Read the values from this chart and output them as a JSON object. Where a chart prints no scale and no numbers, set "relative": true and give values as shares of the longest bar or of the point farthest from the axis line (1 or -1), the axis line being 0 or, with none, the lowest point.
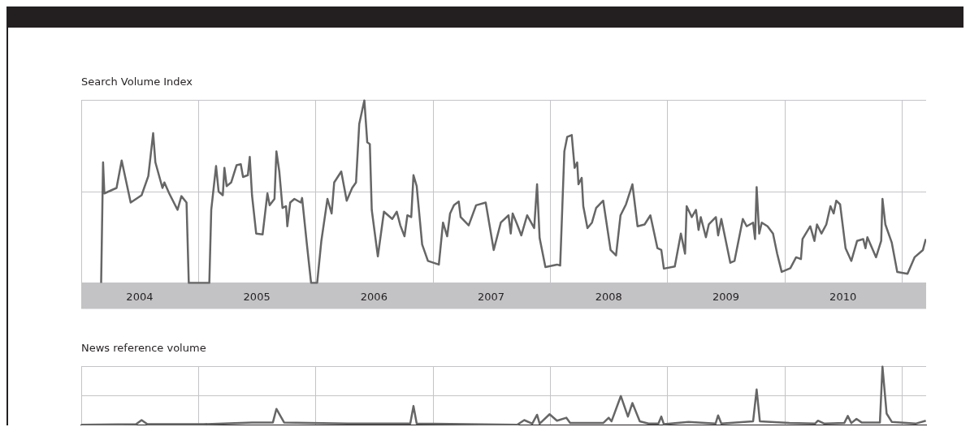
{
  "chart_data": [
    {
      "type": "line",
      "title": "Search Volume Index",
      "relative": true,
      "grid": true,
      "color": "#666666",
      "xlim": [
        "2004-01-01",
        "2011-03-17"
      ],
      "xticks": [
        {
          "value": "2004-01-01",
          "label": null
        },
        {
          "value": "2004-07-01",
          "label": "2004"
        },
        {
          "value": "2005-01-01",
          "label": null
        },
        {
          "value": "2005-07-01",
          "label": "2005"
        },
        {
          "value": "2006-01-01",
          "label": null
        },
        {
          "value": "2006-07-01",
          "label": "2006"
        },
        {
          "value": "2007-01-01",
          "label": null
        },
        {
          "value": "2007-07-01",
          "label": "2007"
        },
        {
          "value": "2008-01-01",
          "label": null
        },
        {
          "value": "2008-07-01",
          "label": "2008"
        },
        {
          "value": "2009-01-01",
          "label": null
        },
        {
          "value": "2009-07-01",
          "label": "2009"
        },
        {
          "value": "2010-01-01",
          "label": null
        },
        {
          "value": "2010-07-01",
          "label": "2010"
        },
        {
          "value": "2011-01-01",
          "label": null
        }
      ],
      "x": [
        "2004-03-03",
        "2004-03-09",
        "2004-03-13",
        "2004-04-20",
        "2004-05-06",
        "2004-06-03",
        "2004-07-07",
        "2004-07-28",
        "2004-08-12",
        "2004-08-19",
        "2004-09-10",
        "2004-09-16",
        "2004-10-01",
        "2004-10-27",
        "2004-11-08",
        "2004-11-24",
        "2004-12-01",
        "2005-02-03",
        "2005-02-09",
        "2005-02-24",
        "2005-03-04",
        "2005-03-17",
        "2005-03-22",
        "2005-03-29",
        "2005-04-12",
        "2005-04-29",
        "2005-05-12",
        "2005-05-19",
        "2005-06-03",
        "2005-06-09",
        "2005-06-16",
        "2005-06-29",
        "2005-07-19",
        "2005-08-03",
        "2005-08-10",
        "2005-08-25",
        "2005-08-31",
        "2005-09-09",
        "2005-09-19",
        "2005-09-30",
        "2005-10-04",
        "2005-10-13",
        "2005-10-26",
        "2005-11-15",
        "2005-11-19",
        "2005-12-04",
        "2005-12-17",
        "2006-01-05",
        "2006-01-18",
        "2006-02-06",
        "2006-02-19",
        "2006-02-27",
        "2006-03-21",
        "2006-04-07",
        "2006-04-24",
        "2006-05-06",
        "2006-05-16",
        "2006-06-01",
        "2006-06-10",
        "2006-06-18",
        "2006-06-24",
        "2006-07-13",
        "2006-08-01",
        "2006-08-27",
        "2006-09-10",
        "2006-09-21",
        "2006-10-04",
        "2006-10-13",
        "2006-10-25",
        "2006-11-01",
        "2006-11-11",
        "2006-11-28",
        "2006-12-16",
        "2007-01-02",
        "2007-01-19",
        "2007-02-01",
        "2007-02-14",
        "2007-02-23",
        "2007-03-07",
        "2007-03-22",
        "2007-03-28",
        "2007-04-22",
        "2007-05-15",
        "2007-06-14",
        "2007-07-09",
        "2007-07-31",
        "2007-08-24",
        "2007-08-31",
        "2007-09-06",
        "2007-09-20",
        "2007-10-03",
        "2007-10-21",
        "2007-11-12",
        "2007-11-21",
        "2007-11-29",
        "2007-12-17",
        "2008-01-22",
        "2008-02-01",
        "2008-02-14",
        "2008-02-23",
        "2008-03-08",
        "2008-03-17",
        "2008-03-25",
        "2008-03-29",
        "2008-04-08",
        "2008-04-13",
        "2008-04-26",
        "2008-05-10",
        "2008-05-23",
        "2008-06-14",
        "2008-07-07",
        "2008-07-24",
        "2008-08-07",
        "2008-08-24",
        "2008-09-13",
        "2008-09-29",
        "2008-10-21",
        "2008-11-08",
        "2008-11-30",
        "2008-12-12",
        "2008-12-20",
        "2009-01-23",
        "2009-02-11",
        "2009-02-24",
        "2009-03-01",
        "2009-03-17",
        "2009-03-30",
        "2009-04-07",
        "2009-04-14",
        "2009-04-30",
        "2009-05-09",
        "2009-05-31",
        "2009-06-07",
        "2009-06-17",
        "2009-07-15",
        "2009-07-28",
        "2009-08-23",
        "2009-09-04",
        "2009-09-24",
        "2009-09-30",
        "2009-10-05",
        "2009-10-13",
        "2009-10-21",
        "2009-11-08",
        "2009-11-25",
        "2009-12-08",
        "2009-12-22",
        "2010-01-18",
        "2010-02-05",
        "2010-02-20",
        "2010-02-25",
        "2010-03-21",
        "2010-04-03",
        "2010-04-11",
        "2010-04-25",
        "2010-05-10",
        "2010-05-23",
        "2010-06-02",
        "2010-06-10",
        "2010-06-22",
        "2010-07-09",
        "2010-07-27",
        "2010-08-14",
        "2010-09-02",
        "2010-09-09",
        "2010-09-15",
        "2010-10-12",
        "2010-10-28",
        "2010-11-01",
        "2010-11-10",
        "2010-11-30",
        "2010-12-17",
        "2011-01-18",
        "2011-02-09",
        "2011-03-07",
        "2011-03-16"
      ],
      "values": [
        0,
        0.66,
        0.49,
        0.52,
        0.67,
        0.44,
        0.48,
        0.585,
        0.82,
        0.66,
        0.52,
        0.55,
        0.49,
        0.4,
        0.475,
        0.44,
        0,
        0,
        0.4,
        0.64,
        0.5,
        0.48,
        0.63,
        0.53,
        0.55,
        0.645,
        0.65,
        0.58,
        0.59,
        0.69,
        0.48,
        0.27,
        0.265,
        0.49,
        0.425,
        0.46,
        0.72,
        0.61,
        0.41,
        0.42,
        0.31,
        0.44,
        0.46,
        0.44,
        0.465,
        0.21,
        0,
        0,
        0.23,
        0.46,
        0.38,
        0.55,
        0.61,
        0.45,
        0.52,
        0.55,
        0.87,
        1,
        0.77,
        0.76,
        0.4,
        0.145,
        0.39,
        0.35,
        0.39,
        0.315,
        0.255,
        0.37,
        0.36,
        0.59,
        0.53,
        0.21,
        0.12,
        0.11,
        0.1,
        0.33,
        0.255,
        0.38,
        0.425,
        0.445,
        0.36,
        0.315,
        0.425,
        0.44,
        0.18,
        0.33,
        0.37,
        0.27,
        0.38,
        0.32,
        0.26,
        0.37,
        0.3,
        0.54,
        0.245,
        0.086,
        0.1,
        0.095,
        0.72,
        0.8,
        0.81,
        0.63,
        0.66,
        0.54,
        0.575,
        0.42,
        0.3,
        0.33,
        0.41,
        0.45,
        0.18,
        0.15,
        0.37,
        0.43,
        0.54,
        0.31,
        0.32,
        0.37,
        0.19,
        0.18,
        0.078,
        0.09,
        0.27,
        0.16,
        0.42,
        0.36,
        0.4,
        0.29,
        0.36,
        0.25,
        0.32,
        0.36,
        0.26,
        0.35,
        0.11,
        0.12,
        0.35,
        0.31,
        0.33,
        0.24,
        0.525,
        0.27,
        0.33,
        0.31,
        0.27,
        0.16,
        0.06,
        0.08,
        0.14,
        0.13,
        0.24,
        0.31,
        0.23,
        0.32,
        0.27,
        0.32,
        0.42,
        0.38,
        0.45,
        0.43,
        0.19,
        0.12,
        0.23,
        0.24,
        0.19,
        0.25,
        0.14,
        0.23,
        0.46,
        0.32,
        0.22,
        0.06,
        0.05,
        0.14,
        0.18,
        0.24
      ]
    },
    {
      "type": "line",
      "title": "News reference volume",
      "relative": true,
      "grid": true,
      "tick_labels": false,
      "color": "#666666",
      "xlim": [
        "2004-01-01",
        "2011-03-17"
      ],
      "xticks": [
        {
          "value": "2004-01-01",
          "label": null
        },
        {
          "value": "2005-01-01",
          "label": null
        },
        {
          "value": "2006-01-01",
          "label": null
        },
        {
          "value": "2007-01-01",
          "label": null
        },
        {
          "value": "2008-01-01",
          "label": null
        },
        {
          "value": "2009-01-01",
          "label": null
        },
        {
          "value": "2010-01-01",
          "label": null
        },
        {
          "value": "2011-01-01",
          "label": null
        }
      ],
      "x": [
        "2004-01-01",
        "2004-06-20",
        "2004-07-07",
        "2004-07-25",
        "2005-01-15",
        "2005-06-16",
        "2005-08-20",
        "2005-08-31",
        "2005-09-24",
        "2006-04-10",
        "2006-10-22",
        "2006-11-01",
        "2006-11-11",
        "2007-09-20",
        "2007-10-12",
        "2007-11-06",
        "2007-11-21",
        "2007-11-29",
        "2007-12-30",
        "2008-01-22",
        "2008-02-20",
        "2008-03-03",
        "2008-06-14",
        "2008-07-01",
        "2008-07-10",
        "2008-08-08",
        "2008-08-30",
        "2008-09-13",
        "2008-10-06",
        "2008-11-02",
        "2008-12-03",
        "2008-12-12",
        "2008-12-20",
        "2009-03-07",
        "2009-05-30",
        "2009-06-07",
        "2009-06-17",
        "2009-09-24",
        "2009-10-05",
        "2009-10-15",
        "2010-01-15",
        "2010-04-05",
        "2010-04-14",
        "2010-05-04",
        "2010-07-05",
        "2010-07-16",
        "2010-07-27",
        "2010-08-12",
        "2010-08-28",
        "2010-10-24",
        "2010-11-01",
        "2010-11-14",
        "2010-11-30",
        "2011-02-12",
        "2011-03-16"
      ],
      "values": [
        0.01,
        0.02,
        0.09,
        0.02,
        0.02,
        0.05,
        0.05,
        0.28,
        0.05,
        0.03,
        0.03,
        0.33,
        0.03,
        0.01,
        0.09,
        0.03,
        0.18,
        0.03,
        0.19,
        0.08,
        0.13,
        0.04,
        0.04,
        0.13,
        0.07,
        0.5,
        0.15,
        0.38,
        0.07,
        0.03,
        0.03,
        0.15,
        0.02,
        0.06,
        0.03,
        0.17,
        0.03,
        0.07,
        0.61,
        0.07,
        0.04,
        0.03,
        0.08,
        0.03,
        0.04,
        0.16,
        0.04,
        0.11,
        0.05,
        0.05,
        1,
        0.2,
        0.06,
        0.03,
        0.08
      ]
    }
  ]
}
